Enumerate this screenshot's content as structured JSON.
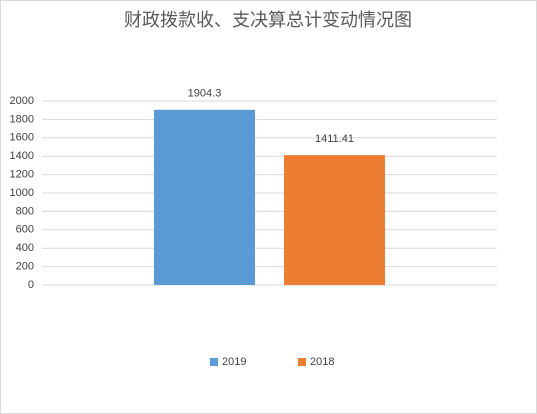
{
  "chart_data": {
    "type": "bar",
    "title": "财政拨款收、支决算总计变动情况图",
    "categories": [
      null
    ],
    "series": [
      {
        "name": "2019",
        "color": "#5b9bd5",
        "values": [
          1904.3
        ]
      },
      {
        "name": "2018",
        "color": "#ed7d31",
        "values": [
          1411.41
        ]
      }
    ],
    "ylim": [
      0,
      2000
    ],
    "yticks": [
      0,
      200,
      400,
      600,
      800,
      1000,
      1200,
      1400,
      1600,
      1800,
      2000
    ],
    "grid": true,
    "legend": "bottom"
  }
}
